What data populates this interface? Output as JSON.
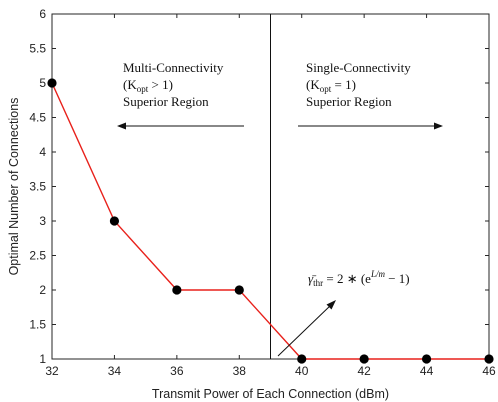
{
  "chart_data": {
    "type": "line",
    "title": "",
    "xlabel": "Transmit Power of Each Connection (dBm)",
    "ylabel": "Optimal Number of Connections",
    "xlim": [
      32,
      46
    ],
    "ylim": [
      1,
      6
    ],
    "xticks": [
      32,
      34,
      36,
      38,
      40,
      42,
      44,
      46
    ],
    "yticks": [
      1,
      1.5,
      2,
      2.5,
      3,
      3.5,
      4,
      4.5,
      5,
      5.5,
      6
    ],
    "xtick_labels": [
      "32",
      "34",
      "36",
      "38",
      "40",
      "42",
      "44",
      "46"
    ],
    "ytick_labels": [
      "1",
      "1.5",
      "2",
      "2.5",
      "3",
      "3.5",
      "4",
      "4.5",
      "5",
      "5.5",
      "6"
    ],
    "grid": false,
    "line_color": "#e8211b",
    "marker_color": "#000000",
    "series": [
      {
        "x": [
          32,
          34,
          36,
          38,
          40,
          42,
          44,
          46
        ],
        "y": [
          5,
          3,
          2,
          2,
          1,
          1,
          1,
          1
        ]
      }
    ],
    "divider_x": 39,
    "annotations": {
      "multi": {
        "line1": "Multi-Connectivity",
        "line2": "(K",
        "sub": "opt",
        "line2_tail": " > 1)",
        "line3": "Superior Region"
      },
      "single": {
        "line1": "Single-Connectivity",
        "line2": "(K",
        "sub": "opt",
        "line2_tail": " = 1)",
        "line3": "Superior Region"
      },
      "threshold": {
        "gamma": "γ̄",
        "sub": "thr",
        "mid": " = 2 ∗ (e",
        "sup": "L/m",
        "tail": " − 1)"
      }
    }
  }
}
